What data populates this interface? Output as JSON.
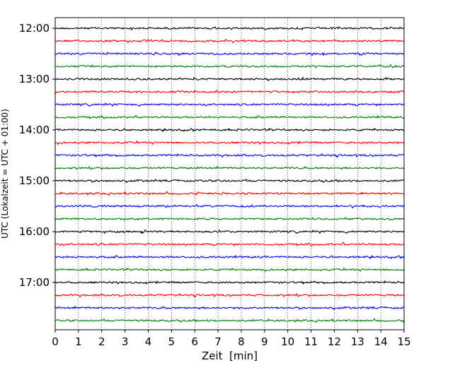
{
  "chart_data": {
    "type": "line",
    "title": "",
    "xlabel": "Zeit  [min]",
    "ylabel": "UTC (Lokalzeit = UTC + 01:00)",
    "x_ticks": [
      "0",
      "1",
      "2",
      "3",
      "4",
      "5",
      "6",
      "7",
      "8",
      "9",
      "10",
      "11",
      "12",
      "13",
      "14",
      "15"
    ],
    "xlim": [
      0,
      15
    ],
    "y_ticks": [
      "12:00",
      "13:00",
      "14:00",
      "15:00",
      "16:00",
      "17:00"
    ],
    "grid": "vertical dotted",
    "trace_interval_min": 15,
    "color_cycle": [
      "#000000",
      "#ff0000",
      "#0000ff",
      "#008000"
    ],
    "series": [
      {
        "start": "12:00"
      },
      {
        "start": "12:15"
      },
      {
        "start": "12:30"
      },
      {
        "start": "12:45"
      },
      {
        "start": "13:00"
      },
      {
        "start": "13:15"
      },
      {
        "start": "13:30"
      },
      {
        "start": "13:45"
      },
      {
        "start": "14:00"
      },
      {
        "start": "14:15"
      },
      {
        "start": "14:30"
      },
      {
        "start": "14:45"
      },
      {
        "start": "15:00"
      },
      {
        "start": "15:15"
      },
      {
        "start": "15:30"
      },
      {
        "start": "15:45"
      },
      {
        "start": "16:00"
      },
      {
        "start": "16:15"
      },
      {
        "start": "16:30"
      },
      {
        "start": "16:45"
      },
      {
        "start": "17:00"
      },
      {
        "start": "17:15"
      },
      {
        "start": "17:30"
      },
      {
        "start": "17:45"
      }
    ]
  }
}
